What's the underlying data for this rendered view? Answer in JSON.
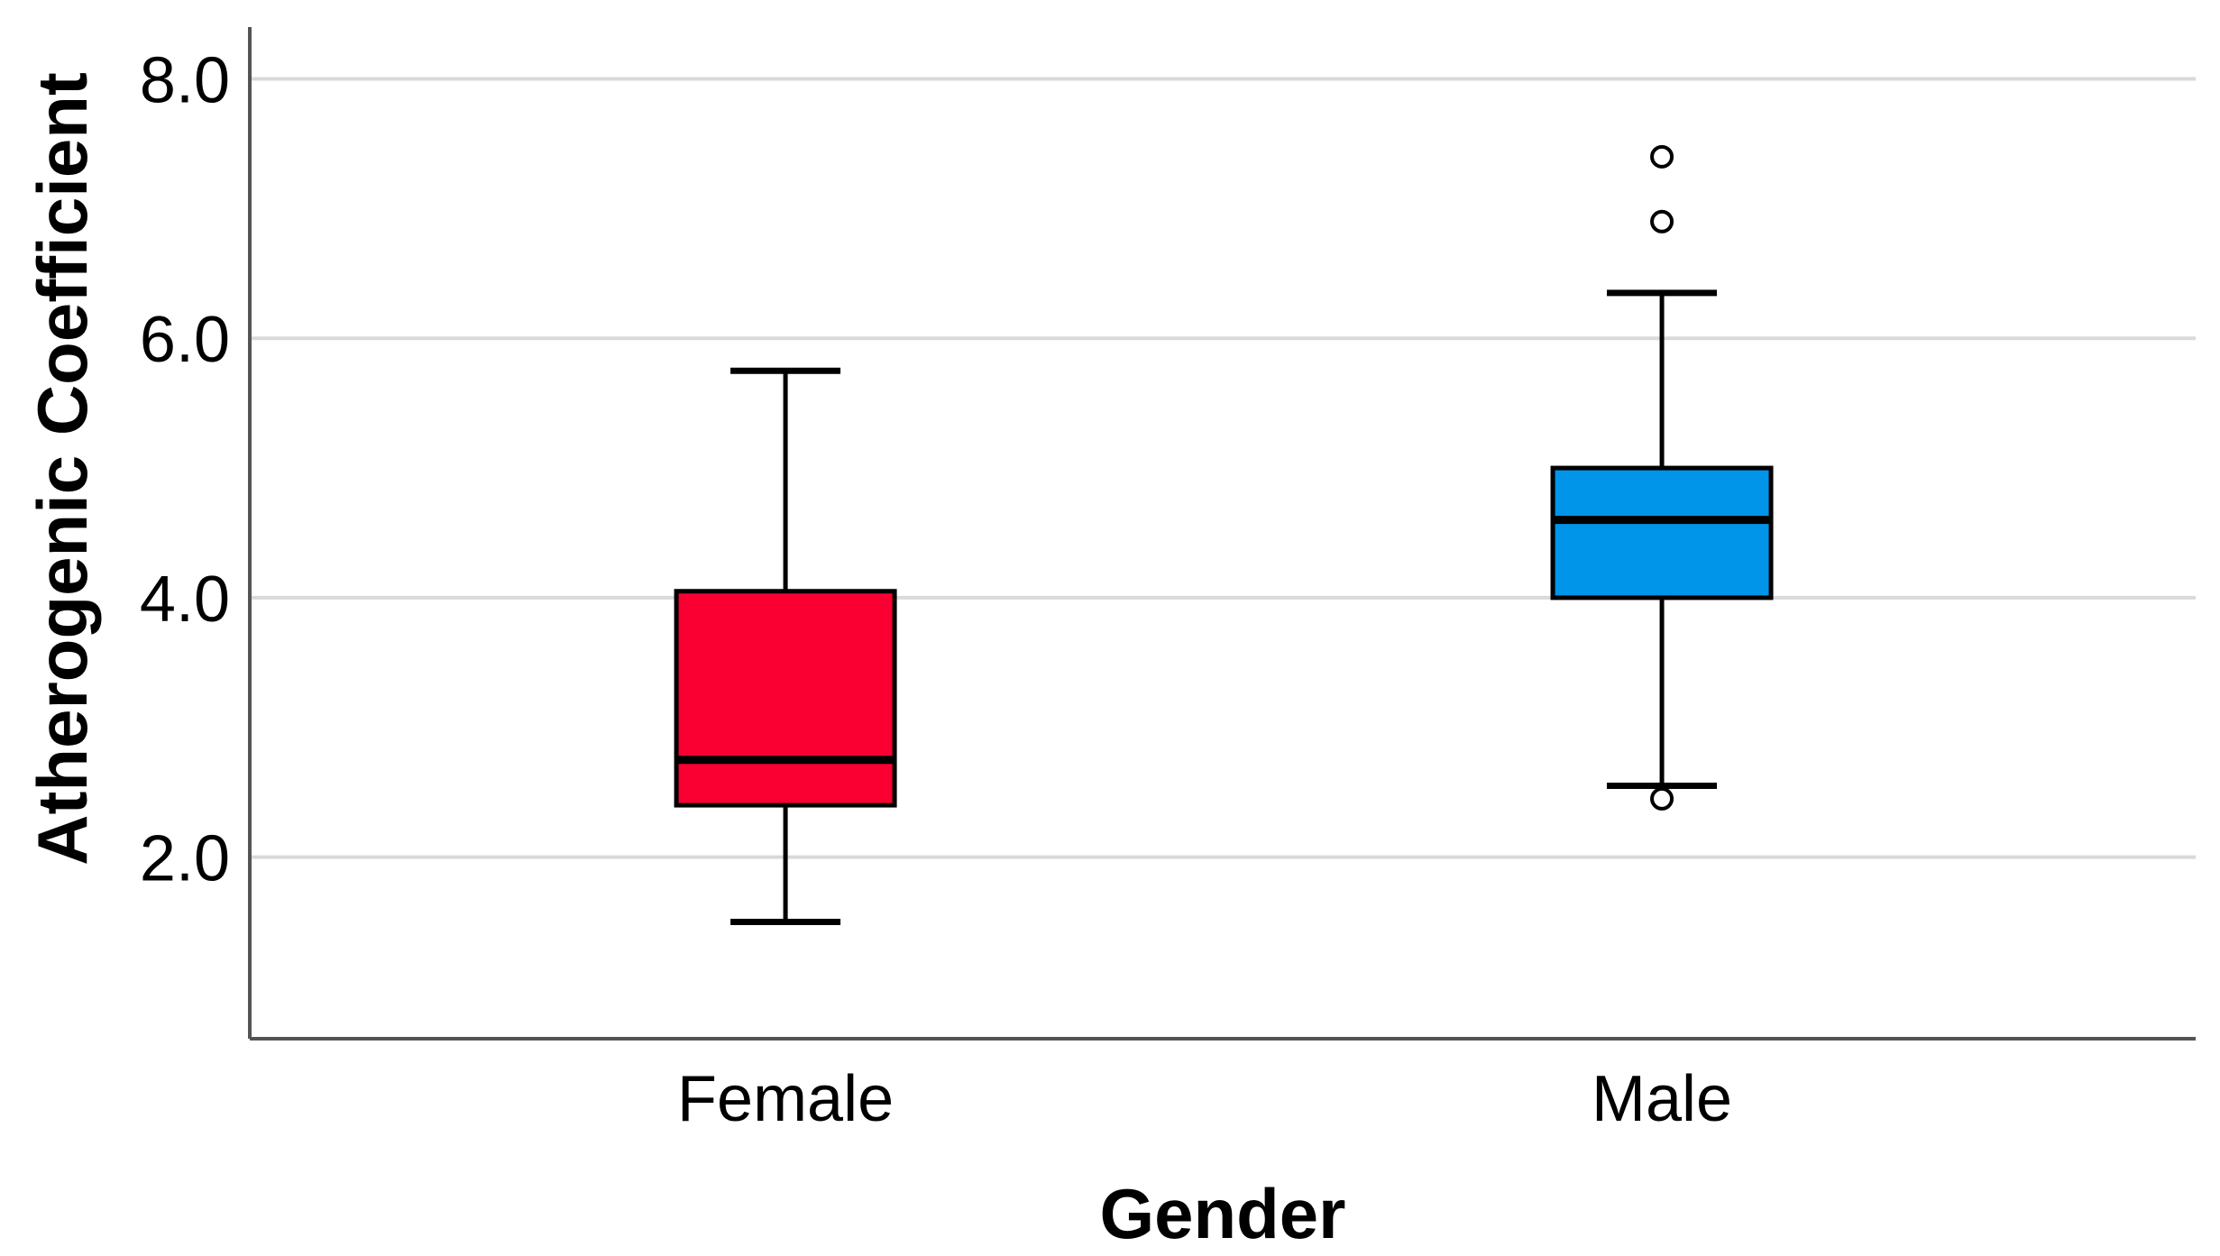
{
  "chart_data": {
    "type": "box",
    "title": "",
    "xlabel": "Gender",
    "ylabel": "Atherogenic Coefficient",
    "categories": [
      "Female",
      "Male"
    ],
    "yticks": [
      2.0,
      4.0,
      6.0,
      8.0
    ],
    "ytick_labels": [
      "2.0",
      "4.0",
      "6.0",
      "8.0"
    ],
    "ylim": [
      0.6,
      8.4
    ],
    "grid": "horizontal",
    "legend": "none",
    "colors": {
      "female_box": "#FA0032",
      "male_box": "#0095E8",
      "gridline": "#D9D9D9",
      "axis_line": "#545454",
      "box_outline": "#000000",
      "outlier_fill": "#FFFFFF"
    },
    "boxes": [
      {
        "category": "Female",
        "color": "#FA0032",
        "whisker_low": 1.5,
        "q1": 2.4,
        "median": 2.75,
        "q3": 4.05,
        "whisker_high": 5.75,
        "outliers": []
      },
      {
        "category": "Male",
        "color": "#0095E8",
        "whisker_low": 2.55,
        "q1": 4.0,
        "median": 4.6,
        "q3": 5.0,
        "whisker_high": 6.35,
        "outliers": [
          7.4,
          6.9,
          2.45
        ]
      }
    ]
  }
}
